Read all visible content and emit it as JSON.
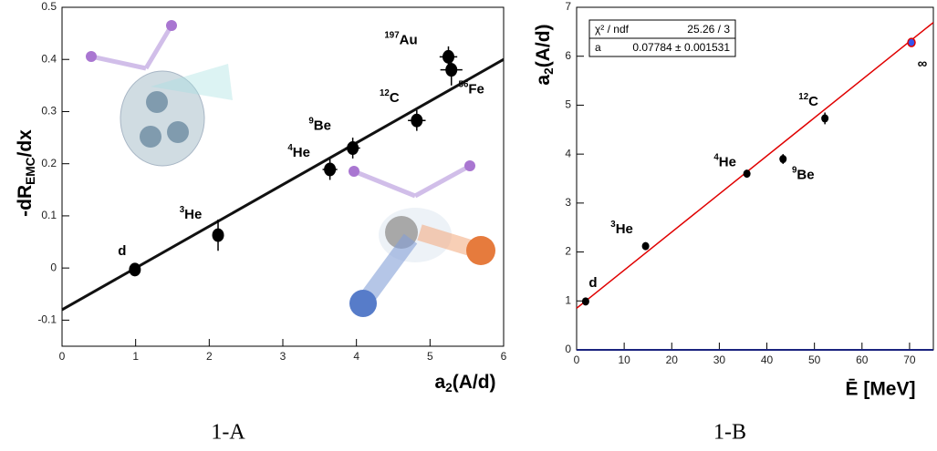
{
  "chart_data": [
    {
      "type": "scatter",
      "caption": "1-A",
      "x_label": {
        "text": "a",
        "sub": "2",
        "tail": "(A/d)"
      },
      "y_label": {
        "text": "-dR",
        "sub": "EMC",
        "tail": "/dx"
      },
      "xlim": [
        0,
        6
      ],
      "ylim": [
        -0.15,
        0.5
      ],
      "xticks": [
        0,
        1,
        2,
        3,
        4,
        5,
        6
      ],
      "yticks": [
        -0.1,
        0,
        0.1,
        0.2,
        0.3,
        0.4,
        0.5
      ],
      "x": [
        0.99,
        2.12,
        3.64,
        3.95,
        4.82,
        5.25,
        5.29
      ],
      "values": [
        -0.003,
        0.063,
        0.189,
        0.23,
        0.283,
        0.405,
        0.38
      ],
      "xerr": [
        0.05,
        0.05,
        0.1,
        0.1,
        0.12,
        0.12,
        0.15
      ],
      "yerr": [
        0.01,
        0.03,
        0.02,
        0.02,
        0.02,
        0.02,
        0.03
      ],
      "labels": [
        "d",
        {
          "sup": "3",
          "text": "He"
        },
        {
          "sup": "4",
          "text": "He"
        },
        {
          "sup": "9",
          "text": "Be"
        },
        {
          "sup": "12",
          "text": "C"
        },
        {
          "sup": "197",
          "text": "Au"
        },
        {
          "sup": "56",
          "text": "Fe"
        }
      ],
      "point_colors": [
        "#000",
        "#000",
        "#000",
        "#000",
        "#000",
        "#000",
        "#000"
      ],
      "fit": {
        "x": [
          0,
          6
        ],
        "values": [
          -0.08,
          0.4
        ],
        "color": "#111"
      }
    },
    {
      "type": "scatter",
      "caption": "1-B",
      "x_label": "Ē [MeV]",
      "y_label": {
        "text": "a",
        "sub": "2",
        "tail": "(A/d)"
      },
      "xlim": [
        0,
        75
      ],
      "ylim": [
        0,
        7
      ],
      "xticks": [
        0,
        10,
        20,
        30,
        40,
        50,
        60,
        70
      ],
      "yticks": [
        0,
        1,
        2,
        3,
        4,
        5,
        6,
        7
      ],
      "x": [
        1.9,
        14.5,
        35.8,
        43.4,
        52.2,
        70.4
      ],
      "values": [
        0.99,
        2.12,
        3.6,
        3.9,
        4.73,
        6.28
      ],
      "yerr": [
        0.05,
        0.05,
        0.06,
        0.1,
        0.12,
        0.05
      ],
      "labels": [
        "d",
        {
          "sup": "3",
          "text": "He"
        },
        {
          "sup": "4",
          "text": "He"
        },
        {
          "sup": "9",
          "text": "Be"
        },
        {
          "sup": "12",
          "text": "C"
        },
        "∞"
      ],
      "point_colors": [
        "#000",
        "#000",
        "#000",
        "#000",
        "#000",
        "#3355ee"
      ],
      "fit": {
        "x": [
          0,
          75
        ],
        "values": [
          0.85,
          6.69
        ],
        "color": "#e00000"
      },
      "stats": [
        {
          "name": "χ² / ndf",
          "value": "25.26 / 3"
        },
        {
          "name": "a",
          "value": "0.07784 ± 0.001531"
        }
      ]
    }
  ]
}
